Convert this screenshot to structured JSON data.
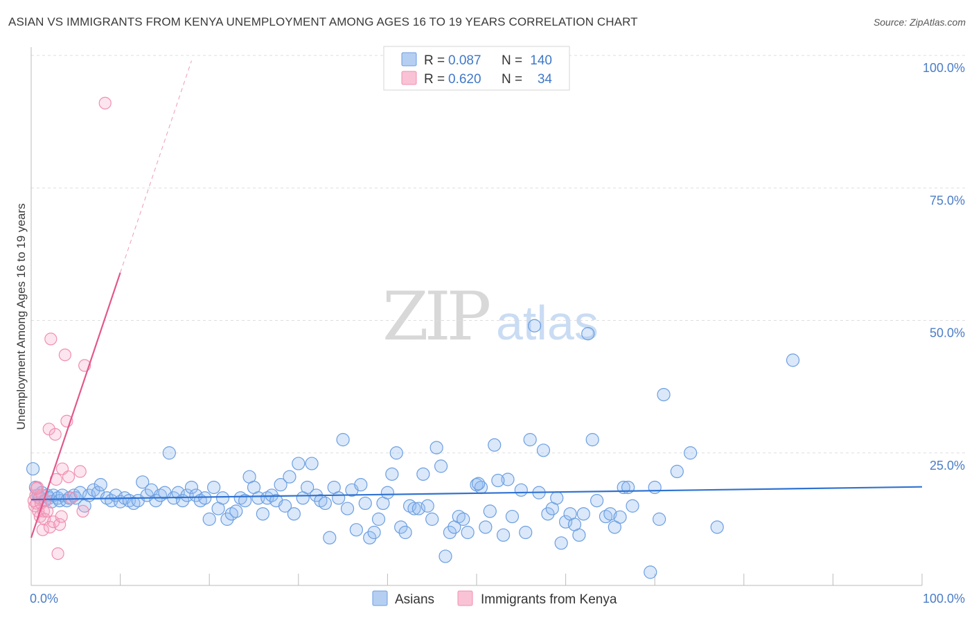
{
  "title": "ASIAN VS IMMIGRANTS FROM KENYA UNEMPLOYMENT AMONG AGES 16 TO 19 YEARS CORRELATION CHART",
  "source": "Source: ZipAtlas.com",
  "watermark": {
    "zip": "ZIP",
    "atlas": "atlas"
  },
  "chart_data": {
    "type": "scatter",
    "title": "ASIAN VS IMMIGRANTS FROM KENYA UNEMPLOYMENT AMONG AGES 16 TO 19 YEARS CORRELATION CHART",
    "xlabel": "",
    "ylabel": "Unemployment Among Ages 16 to 19 years",
    "xlim": [
      0,
      100
    ],
    "ylim": [
      0,
      100
    ],
    "x_tick_labels": {
      "left": "0.0%",
      "right": "100.0%"
    },
    "y_ticks": [
      {
        "value": 100,
        "label": "100.0%"
      },
      {
        "value": 75,
        "label": "75.0%"
      },
      {
        "value": 50,
        "label": "50.0%"
      },
      {
        "value": 25,
        "label": "25.0%"
      }
    ],
    "grid": true,
    "legend_position": "top-center",
    "colors": {
      "asians": "#6b9ee0",
      "kenya": "#f08fb0",
      "asians_line": "#2f72d1",
      "kenya_line": "#e2578a"
    },
    "stats": [
      {
        "series": "Asians",
        "r_label": "R =",
        "r": "0.087",
        "n_label": "N =",
        "n": "140"
      },
      {
        "series": "Immigrants from Kenya",
        "r_label": "R =",
        "r": "0.620",
        "n_label": "N =",
        "n": "34"
      }
    ],
    "series": [
      {
        "name": "Asians",
        "trend": {
          "x0": 0,
          "y0": 16.2,
          "x1": 100,
          "y1": 18.6
        },
        "points": [
          [
            0.2,
            22
          ],
          [
            0.5,
            18.5
          ],
          [
            0.8,
            17
          ],
          [
            1,
            16.5
          ],
          [
            1.2,
            17.5
          ],
          [
            1.5,
            16
          ],
          [
            1.8,
            17
          ],
          [
            2,
            16.5
          ],
          [
            2.3,
            15.8
          ],
          [
            2.5,
            17
          ],
          [
            3,
            16.5
          ],
          [
            3.2,
            16
          ],
          [
            3.5,
            17
          ],
          [
            4,
            16
          ],
          [
            4.3,
            16.5
          ],
          [
            4.8,
            17
          ],
          [
            5,
            16.5
          ],
          [
            5.5,
            17.5
          ],
          [
            6,
            15
          ],
          [
            6.5,
            17
          ],
          [
            7,
            18
          ],
          [
            7.5,
            17.5
          ],
          [
            7.8,
            19
          ],
          [
            8.5,
            16.5
          ],
          [
            9,
            16
          ],
          [
            9.5,
            17
          ],
          [
            10,
            15.8
          ],
          [
            10.5,
            16.5
          ],
          [
            11,
            16
          ],
          [
            11.5,
            15.5
          ],
          [
            12,
            16
          ],
          [
            12.5,
            19.5
          ],
          [
            13,
            17
          ],
          [
            13.5,
            18
          ],
          [
            14,
            16
          ],
          [
            14.5,
            17
          ],
          [
            15,
            17.5
          ],
          [
            15.5,
            25
          ],
          [
            16,
            16.5
          ],
          [
            16.5,
            17.5
          ],
          [
            17,
            16
          ],
          [
            17.5,
            17
          ],
          [
            18,
            18.5
          ],
          [
            18.5,
            17
          ],
          [
            19,
            16
          ],
          [
            19.5,
            16.5
          ],
          [
            20,
            12.5
          ],
          [
            20.5,
            18.5
          ],
          [
            21,
            14.5
          ],
          [
            21.5,
            16.5
          ],
          [
            22,
            12.5
          ],
          [
            22.5,
            13.5
          ],
          [
            23,
            14
          ],
          [
            23.5,
            16.5
          ],
          [
            24,
            16
          ],
          [
            24.5,
            20.5
          ],
          [
            25,
            18.5
          ],
          [
            25.5,
            16.5
          ],
          [
            26,
            13.5
          ],
          [
            26.5,
            16.5
          ],
          [
            27,
            17
          ],
          [
            27.5,
            16
          ],
          [
            28,
            19
          ],
          [
            28.5,
            15
          ],
          [
            29,
            20.5
          ],
          [
            29.5,
            13.5
          ],
          [
            30,
            23
          ],
          [
            30.5,
            16.5
          ],
          [
            31,
            18.5
          ],
          [
            31.5,
            23
          ],
          [
            32,
            17
          ],
          [
            32.5,
            16
          ],
          [
            33,
            15.5
          ],
          [
            33.5,
            9
          ],
          [
            34,
            18.5
          ],
          [
            34.5,
            16.5
          ],
          [
            35,
            27.5
          ],
          [
            35.5,
            14.5
          ],
          [
            36,
            18
          ],
          [
            36.5,
            10.5
          ],
          [
            37,
            19
          ],
          [
            37.5,
            15.5
          ],
          [
            38,
            9
          ],
          [
            38.5,
            10
          ],
          [
            39,
            12.5
          ],
          [
            39.5,
            15.5
          ],
          [
            40,
            17.5
          ],
          [
            40.5,
            21
          ],
          [
            41,
            25
          ],
          [
            41.5,
            11
          ],
          [
            42,
            10
          ],
          [
            42.5,
            15
          ],
          [
            43,
            14.5
          ],
          [
            43.5,
            14.5
          ],
          [
            44,
            21
          ],
          [
            44.5,
            15
          ],
          [
            45,
            12.5
          ],
          [
            45.5,
            26
          ],
          [
            46,
            22.5
          ],
          [
            46.5,
            5.5
          ],
          [
            47,
            10
          ],
          [
            47.5,
            11
          ],
          [
            48,
            13
          ],
          [
            48.5,
            12.5
          ],
          [
            49,
            10
          ],
          [
            50,
            19
          ],
          [
            50.5,
            18.5
          ],
          [
            51,
            11
          ],
          [
            51.5,
            14
          ],
          [
            52,
            26.5
          ],
          [
            53,
            9.5
          ],
          [
            53.5,
            20
          ],
          [
            54,
            13
          ],
          [
            55,
            18
          ],
          [
            55.5,
            10
          ],
          [
            56,
            27.5
          ],
          [
            57,
            17.5
          ],
          [
            57.5,
            25.5
          ],
          [
            58,
            13.5
          ],
          [
            58.5,
            14.5
          ],
          [
            59,
            16.5
          ],
          [
            59.5,
            8
          ],
          [
            60,
            12
          ],
          [
            60.5,
            13.5
          ],
          [
            61,
            11.5
          ],
          [
            61.5,
            9.5
          ],
          [
            62,
            13.5
          ],
          [
            62.5,
            47.5
          ],
          [
            63,
            27.5
          ],
          [
            63.5,
            16
          ],
          [
            64.5,
            13
          ],
          [
            65,
            13.5
          ],
          [
            65.5,
            11
          ],
          [
            66.5,
            18.5
          ],
          [
            67,
            18.5
          ],
          [
            67.5,
            15
          ],
          [
            69.5,
            2.5
          ],
          [
            70,
            18.5
          ],
          [
            70.5,
            12.5
          ],
          [
            71,
            36
          ],
          [
            72.5,
            21.5
          ],
          [
            74,
            25
          ],
          [
            77,
            11
          ],
          [
            85.5,
            42.5
          ],
          [
            56.5,
            49
          ],
          [
            50.2,
            19.2
          ],
          [
            52.4,
            19.8
          ],
          [
            66.1,
            12.9
          ]
        ]
      },
      {
        "name": "Immigrants from Kenya",
        "trend": {
          "x0": 0,
          "y0": 9,
          "x1": 10,
          "y1": 59
        },
        "trend_extension": {
          "x1": 18,
          "y1": 99
        },
        "points": [
          [
            0.3,
            16
          ],
          [
            0.4,
            15
          ],
          [
            0.5,
            17
          ],
          [
            0.6,
            15.5
          ],
          [
            0.7,
            18.5
          ],
          [
            0.8,
            14
          ],
          [
            0.9,
            16.5
          ],
          [
            1,
            13
          ],
          [
            1.1,
            15.5
          ],
          [
            1.2,
            17
          ],
          [
            1.3,
            10.5
          ],
          [
            1.4,
            14
          ],
          [
            1.5,
            12.5
          ],
          [
            1.6,
            16
          ],
          [
            1.8,
            14
          ],
          [
            2,
            29.5
          ],
          [
            2.1,
            11
          ],
          [
            2.2,
            46.5
          ],
          [
            2.5,
            12
          ],
          [
            2.7,
            28.5
          ],
          [
            2.8,
            20
          ],
          [
            3,
            6
          ],
          [
            3.2,
            11.5
          ],
          [
            3.4,
            13
          ],
          [
            3.5,
            22
          ],
          [
            3.8,
            43.5
          ],
          [
            4,
            31
          ],
          [
            4.2,
            20.5
          ],
          [
            4.5,
            16.5
          ],
          [
            5.5,
            21.5
          ],
          [
            5.8,
            14
          ],
          [
            6,
            41.5
          ],
          [
            8.3,
            91
          ],
          [
            0.6,
            18.3
          ]
        ]
      }
    ]
  },
  "bottom_legend": [
    {
      "label": "Asians"
    },
    {
      "label": "Immigrants from Kenya"
    }
  ]
}
